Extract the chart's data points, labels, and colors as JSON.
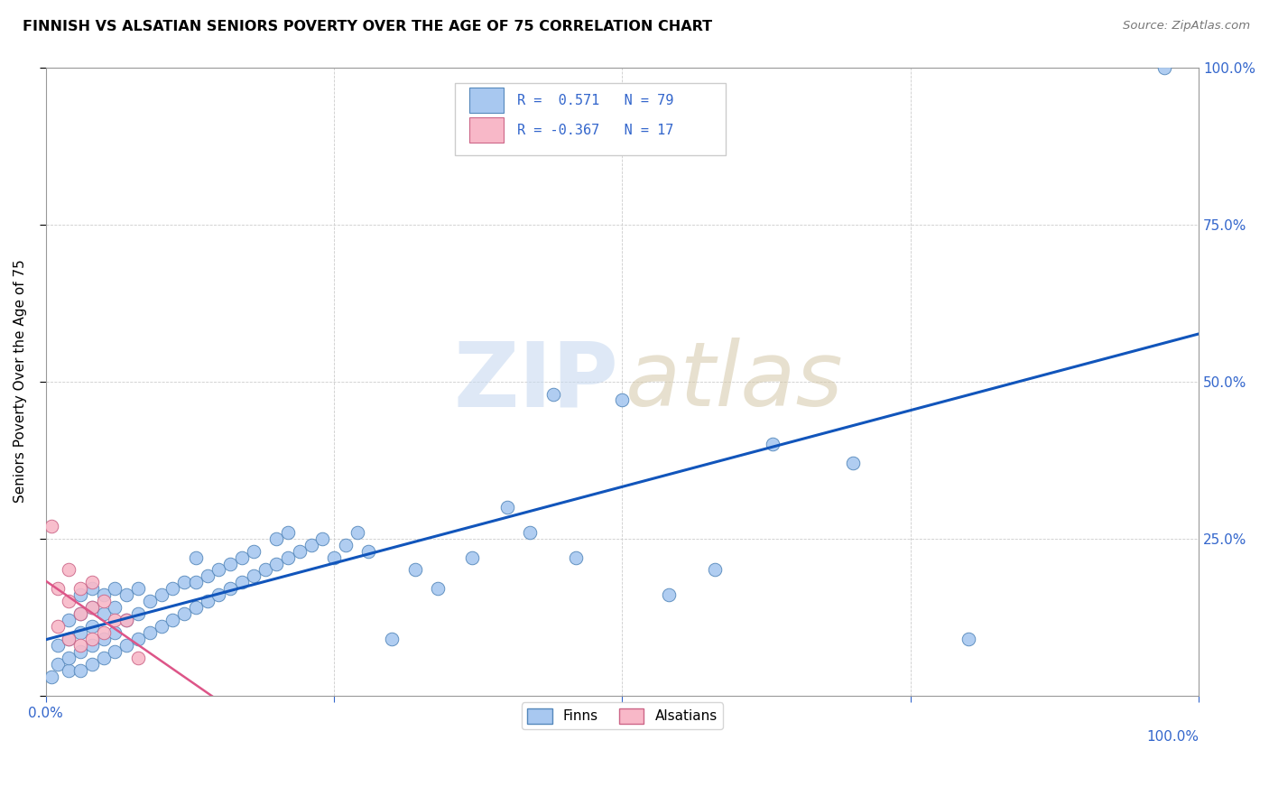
{
  "title": "FINNISH VS ALSATIAN SENIORS POVERTY OVER THE AGE OF 75 CORRELATION CHART",
  "source": "Source: ZipAtlas.com",
  "ylabel": "Seniors Poverty Over the Age of 75",
  "xlim": [
    0.0,
    1.0
  ],
  "ylim": [
    0.0,
    1.0
  ],
  "xticks": [
    0.0,
    0.25,
    0.5,
    0.75,
    1.0
  ],
  "yticks": [
    0.0,
    0.25,
    0.5,
    0.75,
    1.0
  ],
  "finn_color": "#a8c8f0",
  "finn_edge_color": "#5588bb",
  "alsatian_color": "#f8b8c8",
  "alsatian_edge_color": "#cc6688",
  "finn_line_color": "#1155bb",
  "alsatian_line_color": "#dd5588",
  "finn_R": 0.571,
  "finn_N": 79,
  "alsatian_R": -0.367,
  "alsatian_N": 17,
  "tick_color": "#3366cc",
  "finn_scatter_x": [
    0.005,
    0.01,
    0.01,
    0.02,
    0.02,
    0.02,
    0.02,
    0.03,
    0.03,
    0.03,
    0.03,
    0.03,
    0.04,
    0.04,
    0.04,
    0.04,
    0.04,
    0.05,
    0.05,
    0.05,
    0.05,
    0.06,
    0.06,
    0.06,
    0.06,
    0.07,
    0.07,
    0.07,
    0.08,
    0.08,
    0.08,
    0.09,
    0.09,
    0.1,
    0.1,
    0.11,
    0.11,
    0.12,
    0.12,
    0.13,
    0.13,
    0.13,
    0.14,
    0.14,
    0.15,
    0.15,
    0.16,
    0.16,
    0.17,
    0.17,
    0.18,
    0.18,
    0.19,
    0.2,
    0.2,
    0.21,
    0.21,
    0.22,
    0.23,
    0.24,
    0.25,
    0.26,
    0.27,
    0.28,
    0.3,
    0.32,
    0.34,
    0.37,
    0.4,
    0.42,
    0.44,
    0.46,
    0.5,
    0.54,
    0.58,
    0.63,
    0.7,
    0.8,
    0.97
  ],
  "finn_scatter_y": [
    0.03,
    0.05,
    0.08,
    0.04,
    0.06,
    0.09,
    0.12,
    0.04,
    0.07,
    0.1,
    0.13,
    0.16,
    0.05,
    0.08,
    0.11,
    0.14,
    0.17,
    0.06,
    0.09,
    0.13,
    0.16,
    0.07,
    0.1,
    0.14,
    0.17,
    0.08,
    0.12,
    0.16,
    0.09,
    0.13,
    0.17,
    0.1,
    0.15,
    0.11,
    0.16,
    0.12,
    0.17,
    0.13,
    0.18,
    0.14,
    0.18,
    0.22,
    0.15,
    0.19,
    0.16,
    0.2,
    0.17,
    0.21,
    0.18,
    0.22,
    0.19,
    0.23,
    0.2,
    0.21,
    0.25,
    0.22,
    0.26,
    0.23,
    0.24,
    0.25,
    0.22,
    0.24,
    0.26,
    0.23,
    0.09,
    0.2,
    0.17,
    0.22,
    0.3,
    0.26,
    0.48,
    0.22,
    0.47,
    0.16,
    0.2,
    0.4,
    0.37,
    0.09,
    1.0
  ],
  "alsatian_scatter_x": [
    0.005,
    0.01,
    0.01,
    0.02,
    0.02,
    0.02,
    0.03,
    0.03,
    0.03,
    0.04,
    0.04,
    0.04,
    0.05,
    0.05,
    0.06,
    0.07,
    0.08
  ],
  "alsatian_scatter_y": [
    0.27,
    0.11,
    0.17,
    0.09,
    0.15,
    0.2,
    0.08,
    0.13,
    0.17,
    0.09,
    0.14,
    0.18,
    0.1,
    0.15,
    0.12,
    0.12,
    0.06
  ]
}
